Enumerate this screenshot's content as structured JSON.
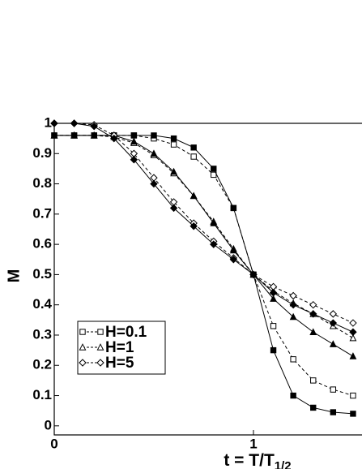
{
  "chart_data": {
    "type": "line",
    "xlabel": "t = T/T",
    "xlabel_sub": "1/2",
    "ylabel": "M",
    "xlim": [
      0,
      1.545
    ],
    "ylim": [
      -0.03,
      1
    ],
    "xticks": [
      0,
      1
    ],
    "yticks": [
      0,
      0.1,
      0.2,
      0.3,
      0.4,
      0.5,
      0.6,
      0.7,
      0.8,
      0.9,
      1
    ],
    "x": [
      0,
      0.1,
      0.2,
      0.3,
      0.4,
      0.5,
      0.6,
      0.7,
      0.8,
      0.9,
      1.0,
      1.1,
      1.2,
      1.3,
      1.4,
      1.5
    ],
    "series": [
      {
        "name": "H=0.1",
        "color": "#000000",
        "marker": "square",
        "filled": false,
        "dashed": true,
        "values": [
          0.96,
          0.96,
          0.96,
          0.96,
          0.96,
          0.95,
          0.93,
          0.89,
          0.83,
          0.72,
          0.5,
          0.33,
          0.22,
          0.15,
          0.12,
          0.1
        ]
      },
      {
        "color": "#000000",
        "marker": "square",
        "filled": true,
        "dashed": false,
        "values": [
          0.96,
          0.96,
          0.96,
          0.96,
          0.96,
          0.96,
          0.95,
          0.92,
          0.85,
          0.72,
          0.5,
          0.25,
          0.1,
          0.06,
          0.045,
          0.04
        ]
      },
      {
        "name": "H=1",
        "color": "#000000",
        "marker": "triangle",
        "filled": false,
        "dashed": true,
        "values": [
          0.96,
          0.96,
          0.96,
          0.955,
          0.935,
          0.895,
          0.835,
          0.76,
          0.675,
          0.585,
          0.5,
          0.445,
          0.405,
          0.37,
          0.33,
          0.29
        ]
      },
      {
        "color": "#000000",
        "marker": "triangle",
        "filled": true,
        "dashed": false,
        "values": [
          0.96,
          0.96,
          0.96,
          0.96,
          0.94,
          0.9,
          0.84,
          0.76,
          0.67,
          0.58,
          0.5,
          0.42,
          0.36,
          0.31,
          0.27,
          0.23
        ]
      },
      {
        "name": "H=5",
        "color": "#000000",
        "marker": "diamond",
        "filled": false,
        "dashed": true,
        "values": [
          1.0,
          1.0,
          0.995,
          0.96,
          0.9,
          0.82,
          0.74,
          0.67,
          0.61,
          0.555,
          0.5,
          0.46,
          0.43,
          0.4,
          0.37,
          0.34
        ]
      },
      {
        "color": "#000000",
        "marker": "diamond",
        "filled": true,
        "dashed": false,
        "values": [
          1.0,
          1.0,
          0.99,
          0.95,
          0.88,
          0.8,
          0.72,
          0.66,
          0.6,
          0.55,
          0.5,
          0.44,
          0.4,
          0.37,
          0.34,
          0.31
        ]
      }
    ]
  }
}
